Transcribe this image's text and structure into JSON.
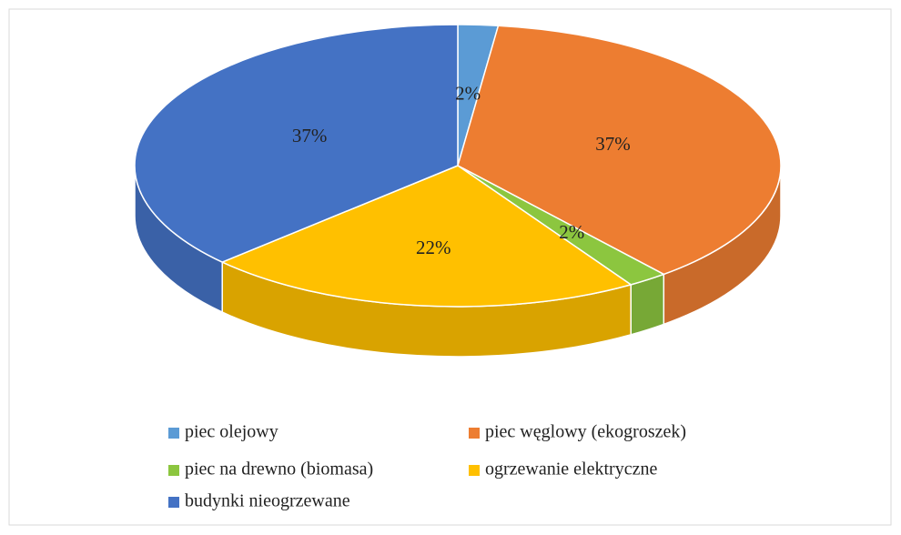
{
  "chart_data": {
    "type": "pie",
    "categories": [
      "piec olejowy",
      "piec węglowy (ekogroszek)",
      "piec na drewno (biomasa)",
      "ogrzewanie elektryczne",
      "budynki nieogrzewane"
    ],
    "values": [
      2,
      37,
      2,
      22,
      37
    ],
    "value_labels": [
      "2%",
      "37%",
      "2%",
      "22%",
      "37%"
    ],
    "colors": [
      "#5b9bd5",
      "#ed7d31",
      "#8cc63f",
      "#ffc000",
      "#4472c4"
    ],
    "legend": "bottom"
  }
}
